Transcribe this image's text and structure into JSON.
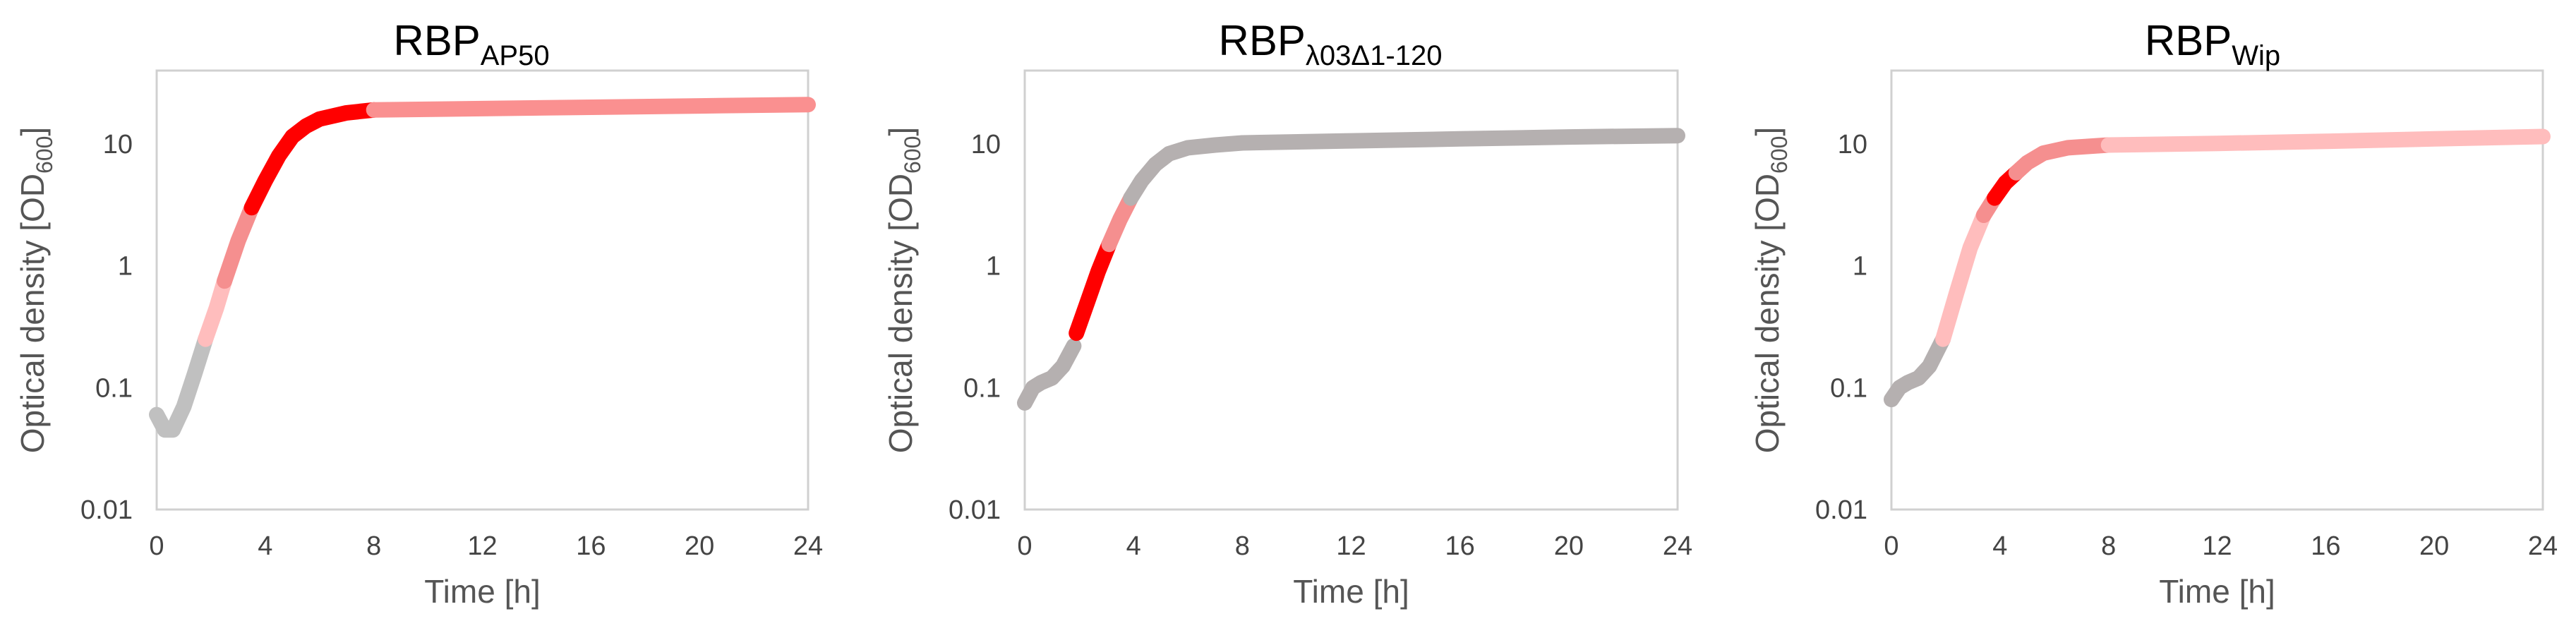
{
  "chart_data": [
    {
      "type": "line",
      "title": {
        "main": "RBP",
        "sub": "AP50"
      },
      "xlabel": "Time [h]",
      "ylabel": {
        "main": "Optical density [OD",
        "sub": "600",
        "end": "]"
      },
      "xlim": [
        0,
        24
      ],
      "ylim": [
        0.01,
        40
      ],
      "yscale": "log",
      "xticks": [
        "0",
        "4",
        "8",
        "12",
        "16",
        "20",
        "24"
      ],
      "yticks": [
        "0.01",
        "0.1",
        "1",
        "10"
      ],
      "series": [
        {
          "color": "#c0c0c0",
          "x": [
            0,
            0.3,
            0.6,
            1.0,
            1.4,
            1.8
          ],
          "y": [
            0.06,
            0.045,
            0.045,
            0.07,
            0.13,
            0.25
          ]
        },
        {
          "color": "#ffbdbd",
          "x": [
            1.8,
            2.2,
            2.5
          ],
          "y": [
            0.25,
            0.45,
            0.75
          ]
        },
        {
          "color": "#f58f8f",
          "x": [
            2.5,
            3.0,
            3.5
          ],
          "y": [
            0.75,
            1.6,
            3.0
          ]
        },
        {
          "color": "#ff0000",
          "x": [
            3.5,
            4.0,
            4.5,
            5.0,
            5.5,
            6.0,
            7.0,
            8.0
          ],
          "y": [
            3.0,
            5.0,
            8.0,
            11.5,
            14.0,
            16.0,
            18.0,
            19.0
          ]
        },
        {
          "color": "#fa9090",
          "x": [
            8.0,
            12.0,
            16.0,
            20.0,
            24.0
          ],
          "y": [
            19.0,
            19.5,
            20.0,
            20.5,
            21.0
          ]
        }
      ]
    },
    {
      "type": "line",
      "title": {
        "main": "RBP",
        "sub": "λ03Δ1-120"
      },
      "xlabel": "Time [h]",
      "ylabel": {
        "main": "Optical density [OD",
        "sub": "600",
        "end": "]"
      },
      "xlim": [
        0,
        24
      ],
      "ylim": [
        0.01,
        40
      ],
      "yscale": "log",
      "xticks": [
        "0",
        "4",
        "8",
        "12",
        "16",
        "20",
        "24"
      ],
      "yticks": [
        "0.01",
        "0.1",
        "1",
        "10"
      ],
      "series": [
        {
          "color": "#b5b0b0",
          "x": [
            0,
            0.3,
            0.6,
            1.0,
            1.4,
            1.8
          ],
          "y": [
            0.075,
            0.1,
            0.11,
            0.12,
            0.15,
            0.22
          ]
        },
        {
          "color": "#ff0000",
          "x": [
            1.9,
            2.3,
            2.7,
            3.1
          ],
          "y": [
            0.28,
            0.5,
            0.9,
            1.5
          ]
        },
        {
          "color": "#f58f8f",
          "x": [
            3.1,
            3.5,
            3.9
          ],
          "y": [
            1.5,
            2.4,
            3.6
          ]
        },
        {
          "color": "#b5b0b0",
          "x": [
            3.9,
            4.3,
            4.8,
            5.3,
            6.0,
            7.0,
            8.0,
            12.0,
            16.0,
            20.0,
            24.0
          ],
          "y": [
            3.6,
            5.0,
            6.8,
            8.3,
            9.3,
            9.8,
            10.2,
            10.6,
            11.0,
            11.4,
            11.7
          ]
        }
      ]
    },
    {
      "type": "line",
      "title": {
        "main": "RBP",
        "sub": "Wip"
      },
      "xlabel": "Time [h]",
      "ylabel": {
        "main": "Optical density [OD",
        "sub": "600",
        "end": "]"
      },
      "xlim": [
        0,
        24
      ],
      "ylim": [
        0.01,
        40
      ],
      "yscale": "log",
      "xticks": [
        "0",
        "4",
        "8",
        "12",
        "16",
        "20",
        "24"
      ],
      "yticks": [
        "0.01",
        "0.1",
        "1",
        "10"
      ],
      "series": [
        {
          "color": "#b5b0b0",
          "x": [
            0,
            0.3,
            0.6,
            1.0,
            1.4,
            1.9
          ],
          "y": [
            0.08,
            0.1,
            0.11,
            0.12,
            0.15,
            0.25
          ]
        },
        {
          "color": "#ffbdbd",
          "x": [
            1.9,
            2.4,
            2.9,
            3.4
          ],
          "y": [
            0.25,
            0.6,
            1.4,
            2.6
          ]
        },
        {
          "color": "#f58f8f",
          "x": [
            3.4,
            3.8
          ],
          "y": [
            2.6,
            3.6
          ]
        },
        {
          "color": "#ff0000",
          "x": [
            3.8,
            4.2,
            4.6
          ],
          "y": [
            3.6,
            4.8,
            5.8
          ]
        },
        {
          "color": "#f58f8f",
          "x": [
            4.6,
            5.0,
            5.6,
            6.5,
            8.0
          ],
          "y": [
            5.8,
            7.0,
            8.4,
            9.3,
            9.8
          ]
        },
        {
          "color": "#ffbdbd",
          "x": [
            8.0,
            12.0,
            16.0,
            20.0,
            24.0
          ],
          "y": [
            9.8,
            10.1,
            10.5,
            11.0,
            11.5
          ]
        }
      ]
    }
  ]
}
